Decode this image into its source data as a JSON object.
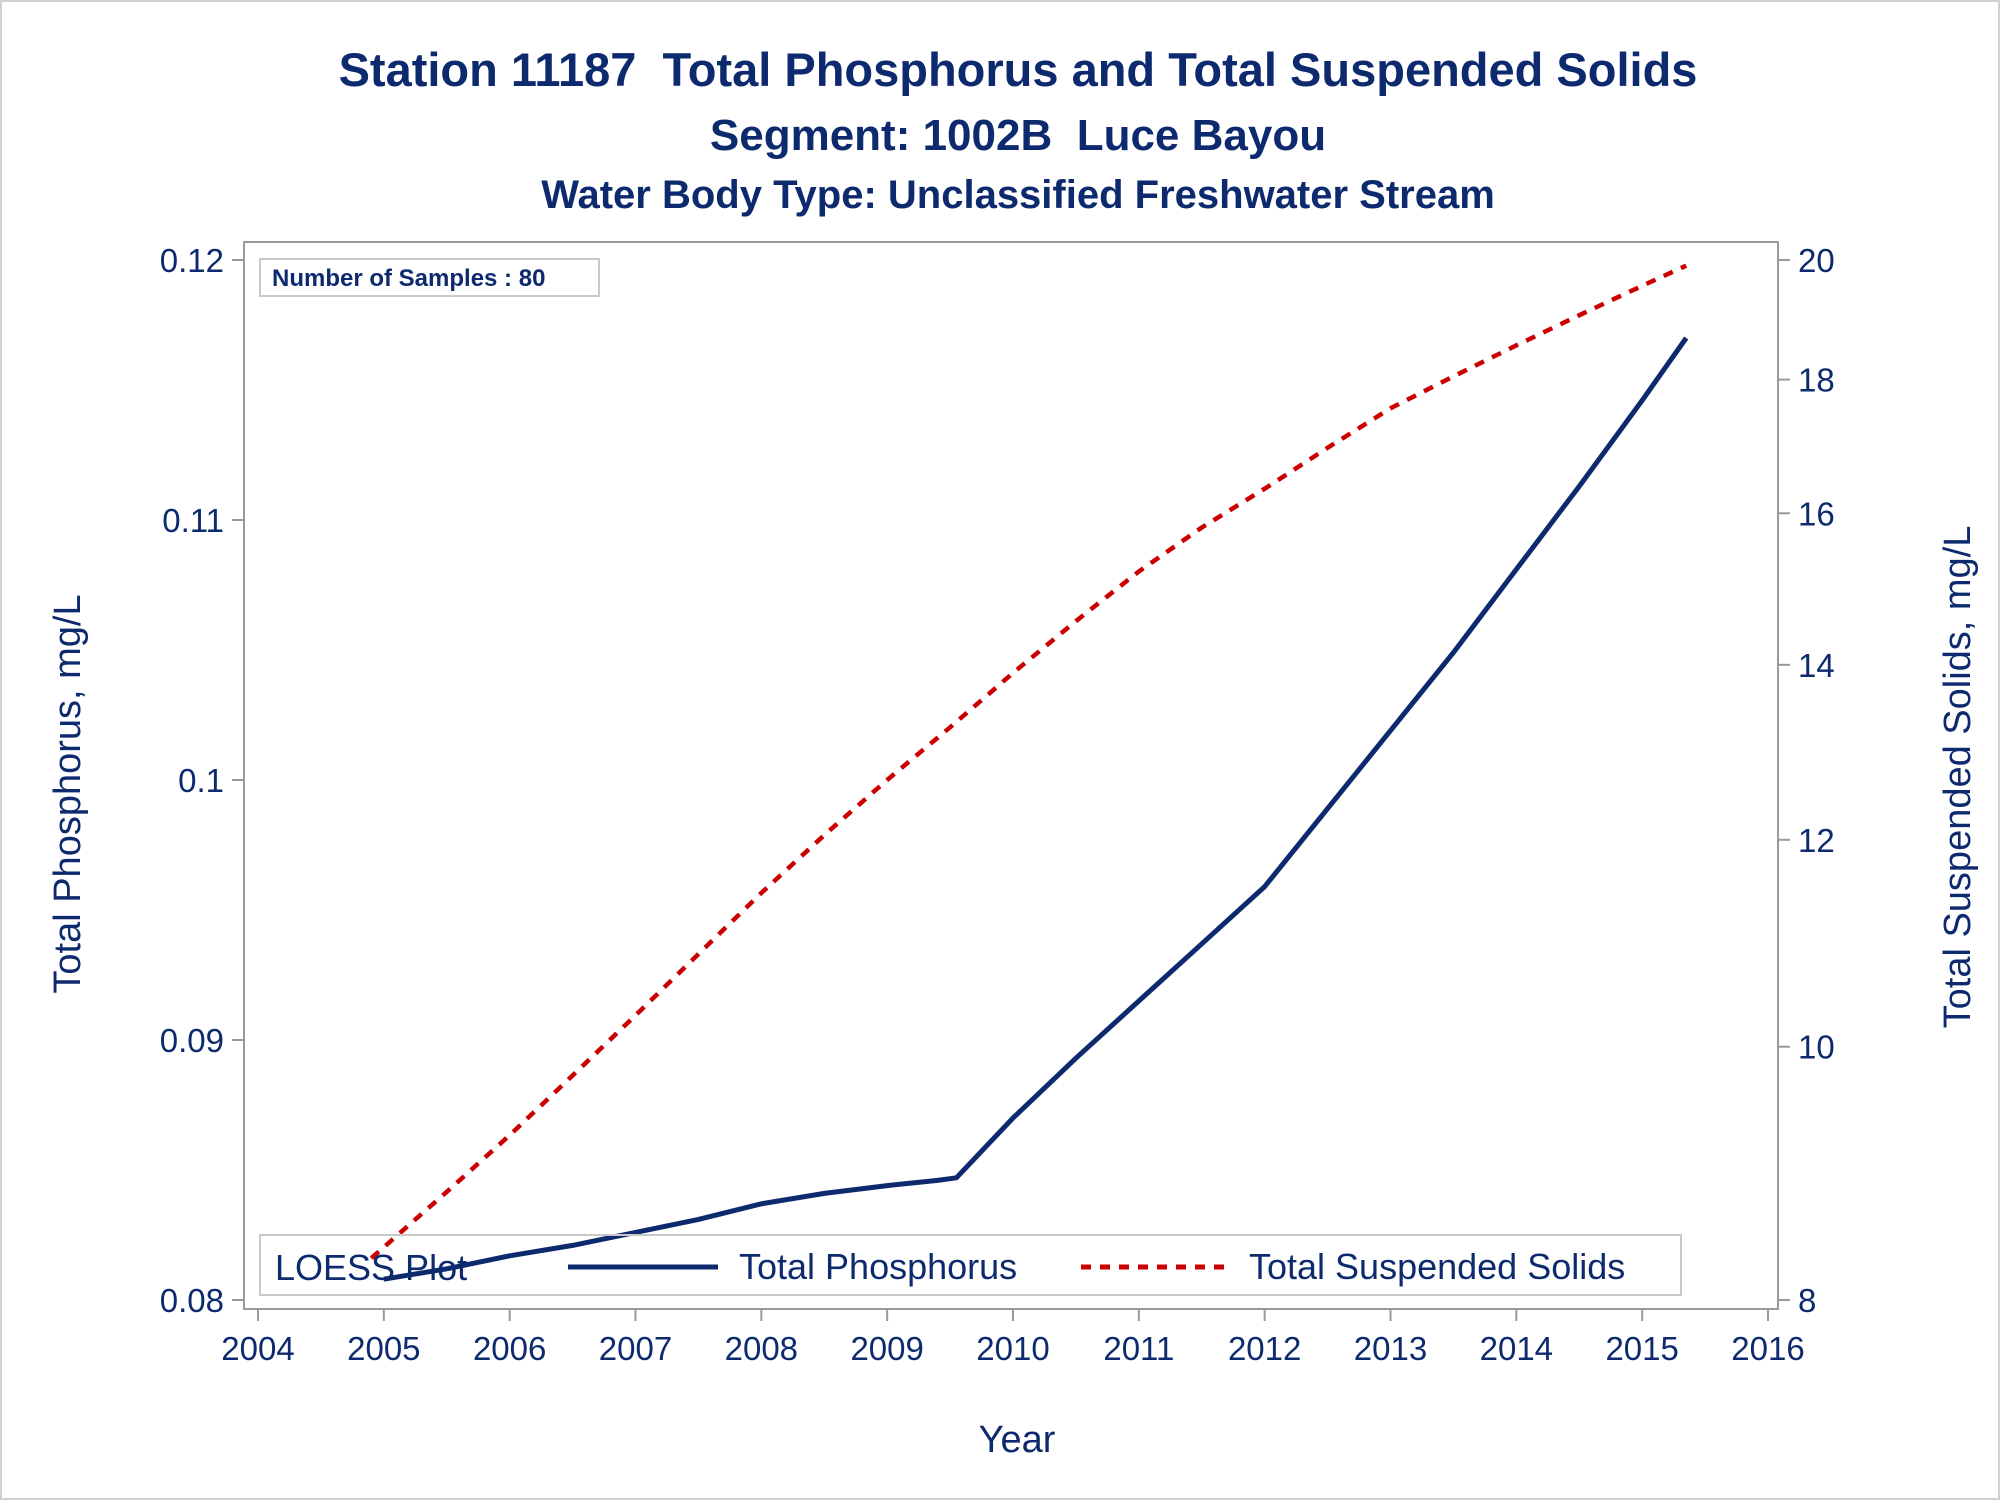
{
  "chart_data": {
    "type": "line",
    "title": "Station 11187  Total Phosphorus and Total Suspended Solids",
    "subtitle": "Segment: 1002B  Luce Bayou",
    "subtitle2": "Water Body Type: Unclassified Freshwater Stream",
    "xlabel": "Year",
    "ylabel": "Total Phosphorus, mg/L",
    "y2label": "Total Suspended Solids, mg/L",
    "annotation": "Number of Samples : 80",
    "xlim": [
      2004,
      2016
    ],
    "ylim": [
      0.08,
      0.12
    ],
    "y2lim": [
      8,
      20
    ],
    "y2scale": "log",
    "xticks": [
      "2004",
      "2005",
      "2006",
      "2007",
      "2008",
      "2009",
      "2010",
      "2011",
      "2012",
      "2013",
      "2014",
      "2015",
      "2016"
    ],
    "yticks": [
      "0.08",
      "0.09",
      "0.1",
      "0.11",
      "0.12"
    ],
    "y2ticks": [
      "8",
      "10",
      "12",
      "14",
      "16",
      "18",
      "20"
    ],
    "legend": {
      "title": "LOESS Plot",
      "position": "bottom-inside"
    },
    "grid": false,
    "series": [
      {
        "name": "Total Phosphorus",
        "axis": "left",
        "style": "solid",
        "color": "#0e2a6e",
        "x": [
          2005.0,
          2005.5,
          2006.0,
          2006.5,
          2007.0,
          2007.5,
          2008.0,
          2008.5,
          2009.0,
          2009.4,
          2009.55,
          2010.0,
          2010.5,
          2011.0,
          2011.5,
          2012.0,
          2012.5,
          2013.0,
          2013.5,
          2014.0,
          2014.5,
          2015.0,
          2015.35
        ],
        "y": [
          0.0808,
          0.0812,
          0.0817,
          0.0821,
          0.0826,
          0.0831,
          0.0837,
          0.0841,
          0.0844,
          0.0846,
          0.0847,
          0.087,
          0.0893,
          0.0915,
          0.0937,
          0.0959,
          0.0989,
          0.1019,
          0.1049,
          0.1081,
          0.1113,
          0.1146,
          0.117
        ]
      },
      {
        "name": "Total Suspended Solids",
        "axis": "right",
        "style": "dashed",
        "color": "#cc0000",
        "x": [
          2004.9,
          2005.5,
          2006.0,
          2006.5,
          2007.0,
          2007.5,
          2008.0,
          2008.5,
          2009.0,
          2009.5,
          2010.0,
          2010.5,
          2011.0,
          2011.5,
          2012.0,
          2012.5,
          2013.0,
          2013.5,
          2014.0,
          2014.5,
          2015.0,
          2015.35
        ],
        "y": [
          8.3,
          8.8,
          9.25,
          9.75,
          10.28,
          10.85,
          11.45,
          12.05,
          12.65,
          13.25,
          13.9,
          14.55,
          15.2,
          15.8,
          16.35,
          16.95,
          17.55,
          18.05,
          18.55,
          19.05,
          19.55,
          19.9
        ]
      }
    ]
  }
}
